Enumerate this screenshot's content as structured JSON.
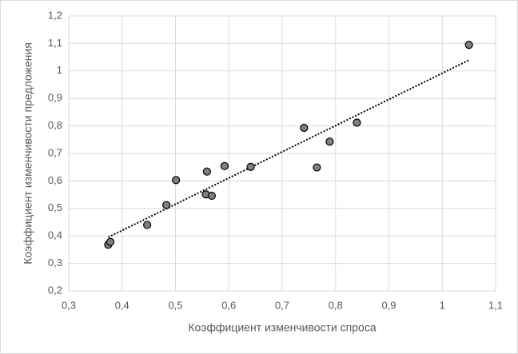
{
  "chart_data": {
    "type": "scatter",
    "x_label": "Коэффициент изменчивости спроса",
    "y_label": "Коэффициент изменчивости предложения",
    "x": [
      0.374,
      0.378,
      0.447,
      0.483,
      0.501,
      0.557,
      0.559,
      0.568,
      0.592,
      0.641,
      0.741,
      0.765,
      0.789,
      0.84,
      1.05
    ],
    "values": [
      0.368,
      0.378,
      0.44,
      0.512,
      0.603,
      0.551,
      0.634,
      0.546,
      0.654,
      0.651,
      0.793,
      0.649,
      0.743,
      0.812,
      1.095
    ],
    "color": "#808080",
    "trendline": "linear",
    "grid": true,
    "xlim": [
      0.3,
      1.1
    ],
    "ylim": [
      0.2,
      1.2
    ],
    "xticks": [
      {
        "value": 0.3,
        "label": "0,3"
      },
      {
        "value": 0.4,
        "label": "0,4"
      },
      {
        "value": 0.5,
        "label": "0,5"
      },
      {
        "value": 0.6,
        "label": "0,6"
      },
      {
        "value": 0.7,
        "label": "0,7"
      },
      {
        "value": 0.8,
        "label": "0,8"
      },
      {
        "value": 0.9,
        "label": "0,9"
      },
      1,
      {
        "value": 1.1,
        "label": "1,1"
      }
    ],
    "yticks": [
      {
        "value": 0.2,
        "label": "0,2"
      },
      {
        "value": 0.3,
        "label": "0,3"
      },
      {
        "value": 0.4,
        "label": "0,4"
      },
      {
        "value": 0.5,
        "label": "0,5"
      },
      {
        "value": 0.6,
        "label": "0,6"
      },
      {
        "value": 0.7,
        "label": "0,7"
      },
      {
        "value": 0.8,
        "label": "0,8"
      },
      {
        "value": 0.9,
        "label": "0,9"
      },
      1,
      {
        "value": 1.1,
        "label": "1,1"
      },
      {
        "value": 1.2,
        "label": "1,2"
      }
    ]
  }
}
